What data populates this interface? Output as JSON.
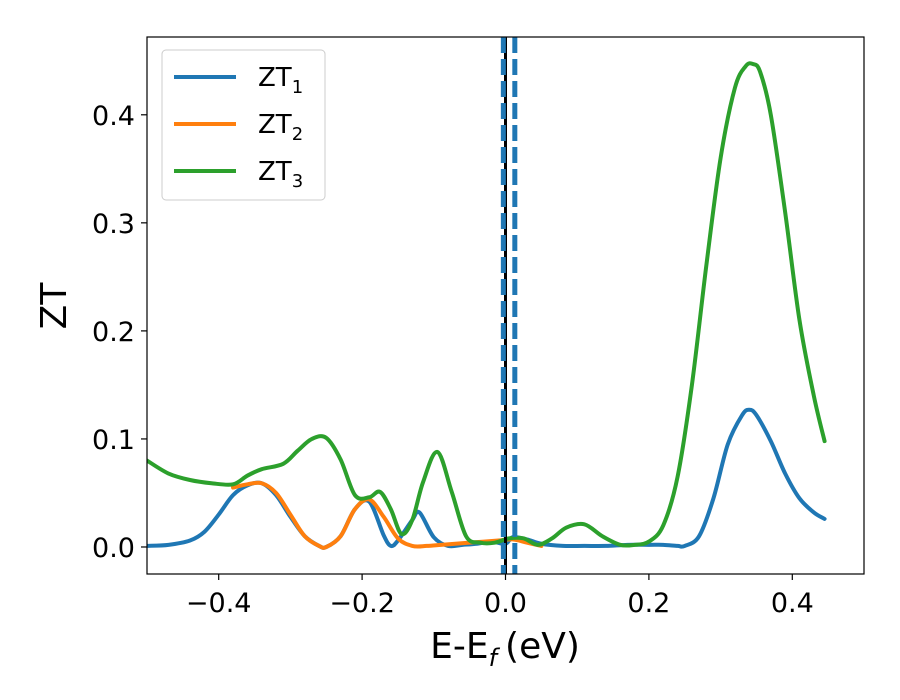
{
  "chart_data": {
    "type": "line",
    "title": "",
    "xlabel": "E-E",
    "xlabel_sub": "f",
    "xlabel_unit": "(eV)",
    "ylabel": "ZT",
    "xlim": [
      -0.5,
      0.5
    ],
    "ylim": [
      -0.025,
      0.472
    ],
    "xticks": [
      -0.4,
      -0.2,
      0.0,
      0.2,
      0.4
    ],
    "xtick_labels": [
      "−0.4",
      "−0.2",
      "0.0",
      "0.2",
      "0.4"
    ],
    "yticks": [
      0.0,
      0.1,
      0.2,
      0.3,
      0.4
    ],
    "ytick_labels": [
      "0.0",
      "0.1",
      "0.2",
      "0.3",
      "0.4"
    ],
    "grid": false,
    "legend_position": "top-left",
    "vlines": [
      {
        "x": 0.0,
        "color": "#000000",
        "style": "solid"
      },
      {
        "x": -0.003,
        "color": "#1f77b4",
        "style": "dashed"
      },
      {
        "x": 0.013,
        "color": "#1f77b4",
        "style": "dashed"
      }
    ],
    "series": [
      {
        "name": "ZT",
        "sub": "1",
        "color": "#1f77b4",
        "x": [
          -0.5,
          -0.47,
          -0.44,
          -0.42,
          -0.4,
          -0.38,
          -0.36,
          -0.34,
          -0.32,
          -0.3,
          -0.28,
          -0.26,
          -0.25,
          -0.23,
          -0.21,
          -0.19,
          -0.17,
          -0.16,
          -0.15,
          -0.13,
          -0.12,
          -0.1,
          -0.08,
          -0.06,
          -0.04,
          -0.02,
          0.0,
          0.01,
          0.03,
          0.05,
          0.08,
          0.11,
          0.14,
          0.17,
          0.2,
          0.22,
          0.24,
          0.25,
          0.27,
          0.29,
          0.31,
          0.33,
          0.34,
          0.35,
          0.37,
          0.39,
          0.41,
          0.43,
          0.445
        ],
        "y": [
          0.001,
          0.002,
          0.006,
          0.014,
          0.03,
          0.048,
          0.057,
          0.059,
          0.048,
          0.028,
          0.01,
          0.001,
          0.0,
          0.01,
          0.035,
          0.042,
          0.011,
          0.001,
          0.006,
          0.025,
          0.032,
          0.009,
          0.001,
          0.002,
          0.003,
          0.005,
          0.003,
          0.009,
          0.007,
          0.003,
          0.001,
          0.001,
          0.001,
          0.002,
          0.002,
          0.002,
          0.001,
          0.001,
          0.01,
          0.045,
          0.095,
          0.122,
          0.127,
          0.122,
          0.098,
          0.068,
          0.045,
          0.032,
          0.026
        ]
      },
      {
        "name": "ZT",
        "sub": "2",
        "color": "#ff7f0e",
        "x": [
          -0.38,
          -0.36,
          -0.34,
          -0.32,
          -0.3,
          -0.28,
          -0.26,
          -0.25,
          -0.23,
          -0.21,
          -0.19,
          -0.17,
          -0.15,
          -0.13,
          -0.11,
          -0.09,
          -0.07,
          -0.05,
          -0.03,
          -0.01,
          0.01,
          0.03,
          0.05
        ],
        "y": [
          0.055,
          0.058,
          0.059,
          0.05,
          0.03,
          0.01,
          0.001,
          0.0,
          0.01,
          0.035,
          0.044,
          0.028,
          0.008,
          0.001,
          0.001,
          0.002,
          0.003,
          0.004,
          0.005,
          0.006,
          0.007,
          0.004,
          0.001
        ]
      },
      {
        "name": "ZT",
        "sub": "3",
        "color": "#2ca02c",
        "x": [
          -0.5,
          -0.47,
          -0.44,
          -0.41,
          -0.38,
          -0.36,
          -0.34,
          -0.31,
          -0.29,
          -0.27,
          -0.25,
          -0.23,
          -0.21,
          -0.19,
          -0.175,
          -0.16,
          -0.145,
          -0.13,
          -0.115,
          -0.095,
          -0.075,
          -0.055,
          -0.035,
          -0.015,
          0.005,
          0.025,
          0.045,
          0.065,
          0.085,
          0.11,
          0.135,
          0.16,
          0.18,
          0.2,
          0.22,
          0.24,
          0.26,
          0.28,
          0.3,
          0.32,
          0.335,
          0.345,
          0.355,
          0.37,
          0.39,
          0.41,
          0.43,
          0.445
        ],
        "y": [
          0.08,
          0.068,
          0.062,
          0.059,
          0.058,
          0.066,
          0.072,
          0.077,
          0.089,
          0.1,
          0.101,
          0.081,
          0.048,
          0.046,
          0.051,
          0.035,
          0.012,
          0.025,
          0.06,
          0.088,
          0.051,
          0.01,
          0.004,
          0.004,
          0.008,
          0.008,
          0.002,
          0.008,
          0.018,
          0.021,
          0.01,
          0.002,
          0.002,
          0.005,
          0.02,
          0.065,
          0.15,
          0.26,
          0.36,
          0.425,
          0.445,
          0.447,
          0.44,
          0.4,
          0.31,
          0.21,
          0.14,
          0.098
        ]
      }
    ]
  }
}
